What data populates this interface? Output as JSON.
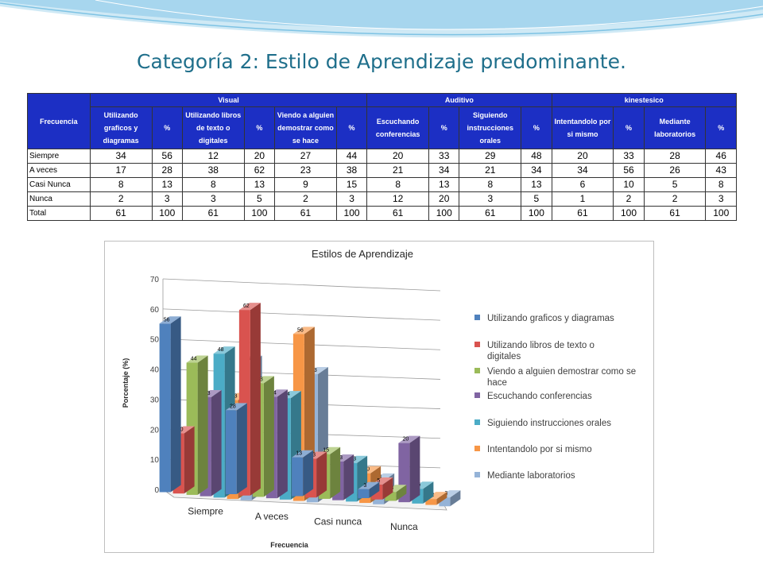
{
  "slide": {
    "title": "Categoría 2: Estilo de Aprendizaje predominante."
  },
  "table": {
    "corner": "Frecuencia",
    "groups": [
      "Visual",
      "Auditivo",
      "kinestesico"
    ],
    "subheaders": [
      "Utilizando graficos y diagramas",
      "%",
      "Utilizando libros de texto o digitales",
      "%",
      "Viendo a alguien demostrar como se hace",
      "%",
      "Escuchando conferencias",
      "%",
      "Siguiendo instrucciones orales",
      "%",
      "Intentandolo por si mismo",
      "%",
      "Mediante laboratorios",
      "%"
    ],
    "rows": [
      {
        "label": "Siempre",
        "cells": [
          "34",
          "56",
          "12",
          "20",
          "27",
          "44",
          "20",
          "33",
          "29",
          "48",
          "20",
          "33",
          "28",
          "46"
        ]
      },
      {
        "label": "A veces",
        "cells": [
          "17",
          "28",
          "38",
          "62",
          "23",
          "38",
          "21",
          "34",
          "21",
          "34",
          "34",
          "56",
          "26",
          "43"
        ]
      },
      {
        "label": "Casi Nunca",
        "cells": [
          "8",
          "13",
          "8",
          "13",
          "9",
          "15",
          "8",
          "13",
          "8",
          "13",
          "6",
          "10",
          "5",
          "8"
        ]
      },
      {
        "label": "Nunca",
        "cells": [
          "2",
          "3",
          "3",
          "5",
          "2",
          "3",
          "12",
          "20",
          "3",
          "5",
          "1",
          "2",
          "2",
          "3"
        ]
      },
      {
        "label": "Total",
        "cells": [
          "61",
          "100",
          "61",
          "100",
          "61",
          "100",
          "61",
          "100",
          "61",
          "100",
          "61",
          "100",
          "61",
          "100"
        ]
      }
    ]
  },
  "chart_data": {
    "type": "bar",
    "title": "Estilos de Aprendizaje",
    "xlabel": "Frecuencia",
    "ylabel": "Porcentaje (%)",
    "ylim": [
      0,
      70
    ],
    "yticks": [
      "0",
      "10",
      "20",
      "30",
      "40",
      "50",
      "60",
      "70"
    ],
    "categories": [
      "Siempre",
      "A veces",
      "Casi nunca",
      "Nunca"
    ],
    "grid": true,
    "legend_position": "right",
    "series": [
      {
        "name": "Utilizando graficos y diagramas",
        "values": [
          56,
          28,
          13,
          3
        ],
        "labels": [
          "56",
          "28",
          "13",
          "3"
        ],
        "color": "#4f81bd"
      },
      {
        "name": "Utilizando libros de texto o digitales",
        "values": [
          20,
          62,
          13,
          5
        ],
        "labels": [
          "20",
          "62",
          "13",
          "5"
        ],
        "color": "#d9534f"
      },
      {
        "name": "Viendo a alguien demostrar como se hace",
        "values": [
          44,
          38,
          15,
          3
        ],
        "labels": [
          "44",
          "38",
          "15",
          "3"
        ],
        "color": "#9bbb59"
      },
      {
        "name": "Escuchando conferencias",
        "values": [
          33,
          34,
          13,
          20
        ],
        "labels": [
          "33",
          "34",
          "13",
          "20"
        ],
        "color": "#8064a2"
      },
      {
        "name": "Siguiendo instrucciones orales",
        "values": [
          48,
          34,
          13,
          5
        ],
        "labels": [
          "48",
          "34",
          "13",
          "5"
        ],
        "color": "#4bacc6"
      },
      {
        "name": "Intentandolo por si mismo",
        "values": [
          33,
          56,
          10,
          2
        ],
        "labels": [
          "33",
          "56",
          "10",
          "2"
        ],
        "color": "#f79646"
      },
      {
        "name": "Mediante laboratorios",
        "values": [
          46,
          43,
          8,
          3
        ],
        "labels": [
          "46",
          "43",
          "8",
          "3"
        ],
        "color": "#95b3d7"
      }
    ]
  }
}
